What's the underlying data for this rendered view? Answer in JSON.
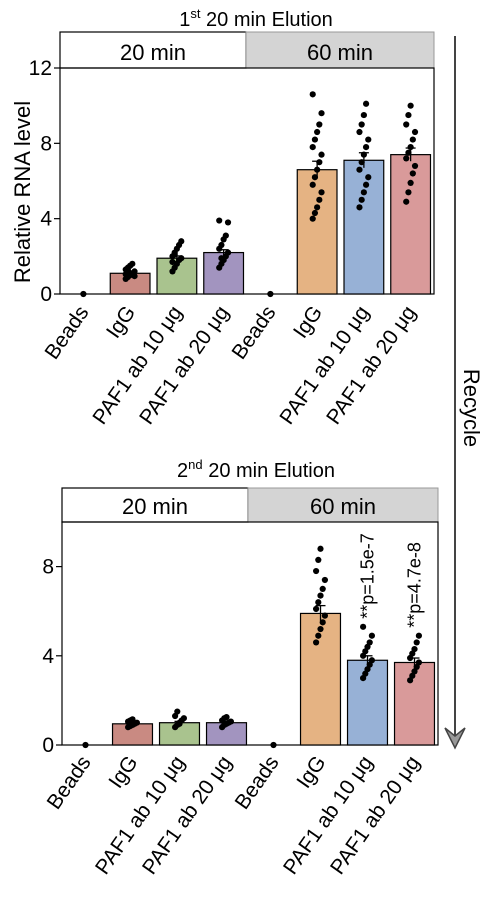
{
  "ylabel": "Relative RNA level",
  "recycle_label": "Recycle",
  "categories": [
    "Beads",
    "IgG",
    "PAF1 ab 10 μg",
    "PAF1 ab 20 μg",
    "Beads",
    "IgG",
    "PAF1 ab 10 μg",
    "PAF1 ab 20 μg"
  ],
  "colors": [
    "#ffffff",
    "#c98a82",
    "#a9c38e",
    "#a294bf",
    "#ffffff",
    "#e5b383",
    "#97b1d6",
    "#d99a9a"
  ],
  "chart_data": [
    {
      "type": "bar",
      "title_prefix": "1",
      "title_sup": "st",
      "title_rest": " 20 min Elution",
      "group_labels": [
        "20 min",
        "60 min"
      ],
      "ylim": [
        0,
        12
      ],
      "yticks": [
        "0",
        "4",
        "8",
        "12"
      ],
      "categories": [
        "Beads",
        "IgG",
        "PAF1 ab 10 μg",
        "PAF1 ab 20 μg",
        "Beads",
        "IgG",
        "PAF1 ab 10 μg",
        "PAF1 ab 20 μg"
      ],
      "values": [
        0,
        1.1,
        1.9,
        2.2,
        0,
        6.6,
        7.1,
        7.4
      ],
      "errors": [
        0,
        0.08,
        0.12,
        0.15,
        0,
        0.45,
        0.4,
        0.35
      ],
      "points": [
        [
          0
        ],
        [
          0.8,
          0.9,
          1.0,
          1.1,
          1.2,
          1.3,
          1.4,
          1.5,
          1.6,
          0.95,
          1.05,
          1.25
        ],
        [
          1.2,
          1.4,
          1.6,
          1.8,
          1.9,
          2.0,
          2.2,
          2.4,
          2.6,
          2.8,
          1.7,
          2.1
        ],
        [
          1.4,
          1.6,
          1.8,
          2.0,
          2.2,
          2.4,
          2.6,
          2.9,
          3.1,
          3.8,
          3.9,
          1.9
        ],
        [
          0
        ],
        [
          4.0,
          4.3,
          4.6,
          5.0,
          5.4,
          5.8,
          6.2,
          6.6,
          7.0,
          7.4,
          7.8,
          8.2,
          8.6,
          9.0,
          9.6,
          10.6
        ],
        [
          4.6,
          5.0,
          5.4,
          5.8,
          6.2,
          6.6,
          7.0,
          7.4,
          7.8,
          8.2,
          8.6,
          9.0,
          9.5,
          10.1
        ],
        [
          4.9,
          5.4,
          5.9,
          6.4,
          6.8,
          7.2,
          7.5,
          7.8,
          8.2,
          8.6,
          9.0,
          9.5,
          10.0
        ]
      ],
      "annotations": [
        "",
        "",
        "",
        "",
        "",
        "",
        "",
        ""
      ]
    },
    {
      "type": "bar",
      "title_prefix": "2",
      "title_sup": "nd",
      "title_rest": " 20 min Elution",
      "group_labels": [
        "20 min",
        "60 min"
      ],
      "ylim": [
        0,
        10
      ],
      "yticks": [
        "0",
        "4",
        "8"
      ],
      "categories": [
        "Beads",
        "IgG",
        "PAF1 ab 10 μg",
        "PAF1 ab 20 μg",
        "Beads",
        "IgG",
        "PAF1 ab 10 μg",
        "PAF1 ab 20 μg"
      ],
      "values": [
        0,
        0.95,
        1.0,
        1.0,
        0,
        5.9,
        3.8,
        3.7
      ],
      "errors": [
        0,
        0.05,
        0.06,
        0.05,
        0,
        0.35,
        0.2,
        0.2
      ],
      "points": [
        [
          0
        ],
        [
          0.8,
          0.85,
          0.9,
          0.95,
          1.0,
          1.05,
          1.1,
          1.15
        ],
        [
          0.8,
          0.9,
          1.0,
          1.1,
          1.2,
          1.3,
          1.5,
          0.95
        ],
        [
          0.8,
          0.9,
          0.95,
          1.0,
          1.05,
          1.1,
          1.2,
          1.25
        ],
        [
          0
        ],
        [
          4.6,
          4.9,
          5.2,
          5.5,
          5.8,
          6.1,
          6.4,
          6.7,
          7.0,
          7.4,
          7.8,
          8.3,
          8.8
        ],
        [
          3.0,
          3.2,
          3.4,
          3.6,
          3.8,
          4.0,
          4.2,
          4.4,
          4.6,
          4.9,
          5.3
        ],
        [
          2.9,
          3.1,
          3.3,
          3.5,
          3.7,
          3.9,
          4.1,
          4.3,
          4.6,
          4.9
        ]
      ],
      "annotations": [
        "",
        "",
        "",
        "",
        "",
        "",
        "**p=1.5e-7",
        "**p=4.7e-8"
      ]
    }
  ]
}
